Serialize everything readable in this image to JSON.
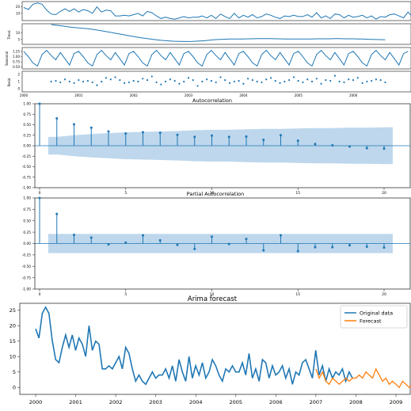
{
  "colors": {
    "line": "#1f77b4",
    "forecast": "#ff7f0e",
    "band": "#a8c9e6",
    "axis": "#333333"
  },
  "chart_data": [
    {
      "type": "line",
      "panel": "decompose-observed",
      "ylabel": "",
      "yticks": [
        10,
        20
      ],
      "ylim": [
        0,
        27
      ],
      "x_start": 2000.0,
      "x_step": 0.0833,
      "values": [
        19,
        16,
        24,
        26,
        24,
        15,
        9,
        8,
        13,
        17,
        13,
        17,
        12,
        16,
        14,
        10,
        20,
        12,
        15,
        14,
        6,
        6,
        7,
        6,
        8,
        10,
        6,
        13,
        11,
        6,
        2,
        4,
        2,
        1,
        3,
        5,
        3,
        4,
        4,
        6,
        3,
        7,
        2,
        9,
        5,
        2,
        10,
        3,
        7,
        4,
        8,
        3,
        5,
        9,
        7,
        4,
        2,
        6,
        5,
        7,
        5,
        5,
        8,
        4,
        11,
        3,
        6,
        2,
        9,
        8,
        3,
        7,
        4,
        5,
        7,
        3,
        6,
        1,
        5,
        4,
        8,
        9,
        6,
        3,
        12,
        4,
        7,
        2,
        6,
        3,
        5,
        4,
        6,
        2,
        5,
        3
      ]
    },
    {
      "type": "line",
      "panel": "decompose-trend",
      "ylabel": "Trend",
      "yticks": [
        5,
        10
      ],
      "ylim": [
        2,
        16
      ],
      "x_start": 2000.5,
      "x_step": 0.0833,
      "values": [
        16,
        15.6,
        15.2,
        14.7,
        14.2,
        13.8,
        13.5,
        13.2,
        12.9,
        12.5,
        12,
        11.4,
        10.8,
        10.2,
        9.6,
        9,
        8.4,
        7.8,
        7.2,
        6.6,
        6.1,
        5.6,
        5.2,
        4.8,
        4.4,
        4.1,
        3.9,
        3.7,
        3.6,
        3.5,
        3.5,
        3.6,
        3.8,
        4,
        4.3,
        4.6,
        4.9,
        5.1,
        5.2,
        5.3,
        5.3,
        5.4,
        5.4,
        5.5,
        5.5,
        5.6,
        5.6,
        5.6,
        5.6,
        5.5,
        5.5,
        5.4,
        5.4,
        5.3,
        5.3,
        5.3,
        5.4,
        5.4,
        5.5,
        5.5,
        5.5,
        5.5,
        5.6,
        5.6,
        5.5,
        5.5,
        5.5,
        5.4,
        5.3,
        5.2,
        5.1,
        5.0,
        4.9,
        4.8
      ]
    },
    {
      "type": "line",
      "panel": "decompose-seasonal",
      "ylabel": "Seasonal",
      "yticks": [
        "1.25",
        "1.00",
        "0.75",
        "0.50"
      ],
      "ylim": [
        0.45,
        1.4
      ],
      "x_start": 2000.0,
      "x_step": 0.0833,
      "pattern": [
        1.25,
        1.0,
        0.7,
        0.55,
        1.1,
        1.3,
        1.05,
        0.85,
        1.2,
        0.9,
        0.6,
        1.15
      ]
    },
    {
      "type": "scatter",
      "panel": "decompose-resid",
      "ylabel": "Resid",
      "yticks": [
        2,
        1,
        0
      ],
      "ylim": [
        -0.3,
        2.3
      ],
      "x_start": 2000.5,
      "x_step": 0.0833,
      "values": [
        1.0,
        1.1,
        0.9,
        1.3,
        1.0,
        0.8,
        1.2,
        1.0,
        1.1,
        0.9,
        0.5,
        1.0,
        1.5,
        1.3,
        1.6,
        1.2,
        0.8,
        0.9,
        1.1,
        1.0,
        1.4,
        1.2,
        1.7,
        0.9,
        0.6,
        1.0,
        1.3,
        1.1,
        0.7,
        1.0,
        1.5,
        1.2,
        0.4,
        1.0,
        1.3,
        1.1,
        0.9,
        1.6,
        1.2,
        0.8,
        1.0,
        1.1,
        0.7,
        1.4,
        1.2,
        1.0,
        0.9,
        1.3,
        1.5,
        1.1,
        0.8,
        1.0,
        1.2,
        1.6,
        1.1,
        0.9,
        1.3,
        1.0,
        1.4,
        0.7,
        1.2,
        1.1,
        1.8,
        1.0,
        0.9,
        1.3,
        1.2,
        1.5,
        0.8,
        1.0,
        1.1,
        1.3,
        1.2,
        0.9
      ]
    },
    {
      "type": "bar",
      "panel": "acf",
      "title": "Autocorrelation",
      "lags": [
        0,
        1,
        2,
        3,
        4,
        5,
        6,
        7,
        8,
        9,
        10,
        11,
        12,
        13,
        14,
        15,
        16,
        17,
        18,
        19,
        20
      ],
      "values": [
        1.0,
        0.65,
        0.51,
        0.43,
        0.34,
        0.29,
        0.32,
        0.31,
        0.26,
        0.21,
        0.24,
        0.21,
        0.22,
        0.14,
        0.25,
        0.12,
        0.04,
        0.01,
        -0.02,
        -0.06,
        -0.07
      ],
      "confint": [
        0.21,
        0.25,
        0.28,
        0.3,
        0.32,
        0.33,
        0.34,
        0.35,
        0.37,
        0.38,
        0.38,
        0.39,
        0.4,
        0.4,
        0.41,
        0.42,
        0.42,
        0.43,
        0.43,
        0.44
      ],
      "ylim": [
        -1.0,
        1.0
      ],
      "yticks": [
        "1.00",
        "0.75",
        "0.50",
        "0.25",
        "0.00",
        "-0.25",
        "-0.50",
        "-0.75",
        "-1.00"
      ],
      "xticks": [
        0,
        5,
        10,
        15,
        20
      ]
    },
    {
      "type": "bar",
      "panel": "pacf",
      "title": "Partial Autocorrelation",
      "lags": [
        0,
        1,
        2,
        3,
        4,
        5,
        6,
        7,
        8,
        9,
        10,
        11,
        12,
        13,
        14,
        15,
        16,
        17,
        18,
        19,
        20
      ],
      "values": [
        1.0,
        0.65,
        0.19,
        0.13,
        -0.02,
        0.02,
        0.18,
        0.07,
        -0.03,
        -0.12,
        0.15,
        -0.01,
        0.1,
        -0.15,
        0.18,
        -0.17,
        -0.08,
        -0.08,
        -0.04,
        -0.07,
        -0.09
      ],
      "band": 0.21,
      "ylim": [
        -1.0,
        1.0
      ],
      "yticks": [
        "1.00",
        "0.75",
        "0.50",
        "0.25",
        "0.00",
        "-0.25",
        "-0.50",
        "-0.75",
        "-1.00"
      ],
      "xticks": [
        0,
        5,
        10,
        15,
        20
      ]
    },
    {
      "type": "line",
      "panel": "forecast",
      "title": "Arima forecast",
      "ylim": [
        -2,
        27
      ],
      "yticks": [
        0,
        5,
        10,
        15,
        20,
        25
      ],
      "xticks": [
        "2000",
        "2001",
        "2002",
        "2003",
        "2004",
        "2005",
        "2006",
        "2007",
        "2008",
        "2009"
      ],
      "series": [
        {
          "name": "Original data",
          "x_start": 2000.0,
          "x_step": 0.0833,
          "values": [
            19,
            16,
            24,
            26,
            24,
            15,
            9,
            8,
            13,
            17,
            13,
            17,
            12,
            16,
            14,
            10,
            20,
            12,
            15,
            14,
            6,
            6,
            7,
            6,
            8,
            10,
            6,
            13,
            11,
            6,
            2,
            4,
            2,
            1,
            3,
            5,
            3,
            4,
            4,
            6,
            3,
            7,
            2,
            9,
            5,
            2,
            10,
            3,
            7,
            4,
            8,
            3,
            5,
            9,
            7,
            4,
            2,
            6,
            5,
            7,
            5,
            5,
            8,
            4,
            11,
            3,
            6,
            2,
            9,
            8,
            3,
            7,
            4,
            5,
            7,
            3,
            6,
            1,
            5,
            4,
            8,
            9,
            6,
            3,
            12,
            4,
            7,
            2,
            6,
            3,
            5,
            4,
            6,
            2,
            5,
            3
          ]
        },
        {
          "name": "Forecast",
          "x_start": 2007.0,
          "x_step": 0.0833,
          "values": [
            6,
            3,
            5,
            2,
            1,
            3,
            2,
            1,
            2,
            3,
            2,
            3,
            3,
            4,
            3,
            5,
            4,
            3,
            6,
            4,
            2,
            3,
            1,
            2,
            1,
            0,
            2,
            1,
            0,
            1,
            2,
            1,
            1,
            1
          ]
        }
      ]
    }
  ]
}
